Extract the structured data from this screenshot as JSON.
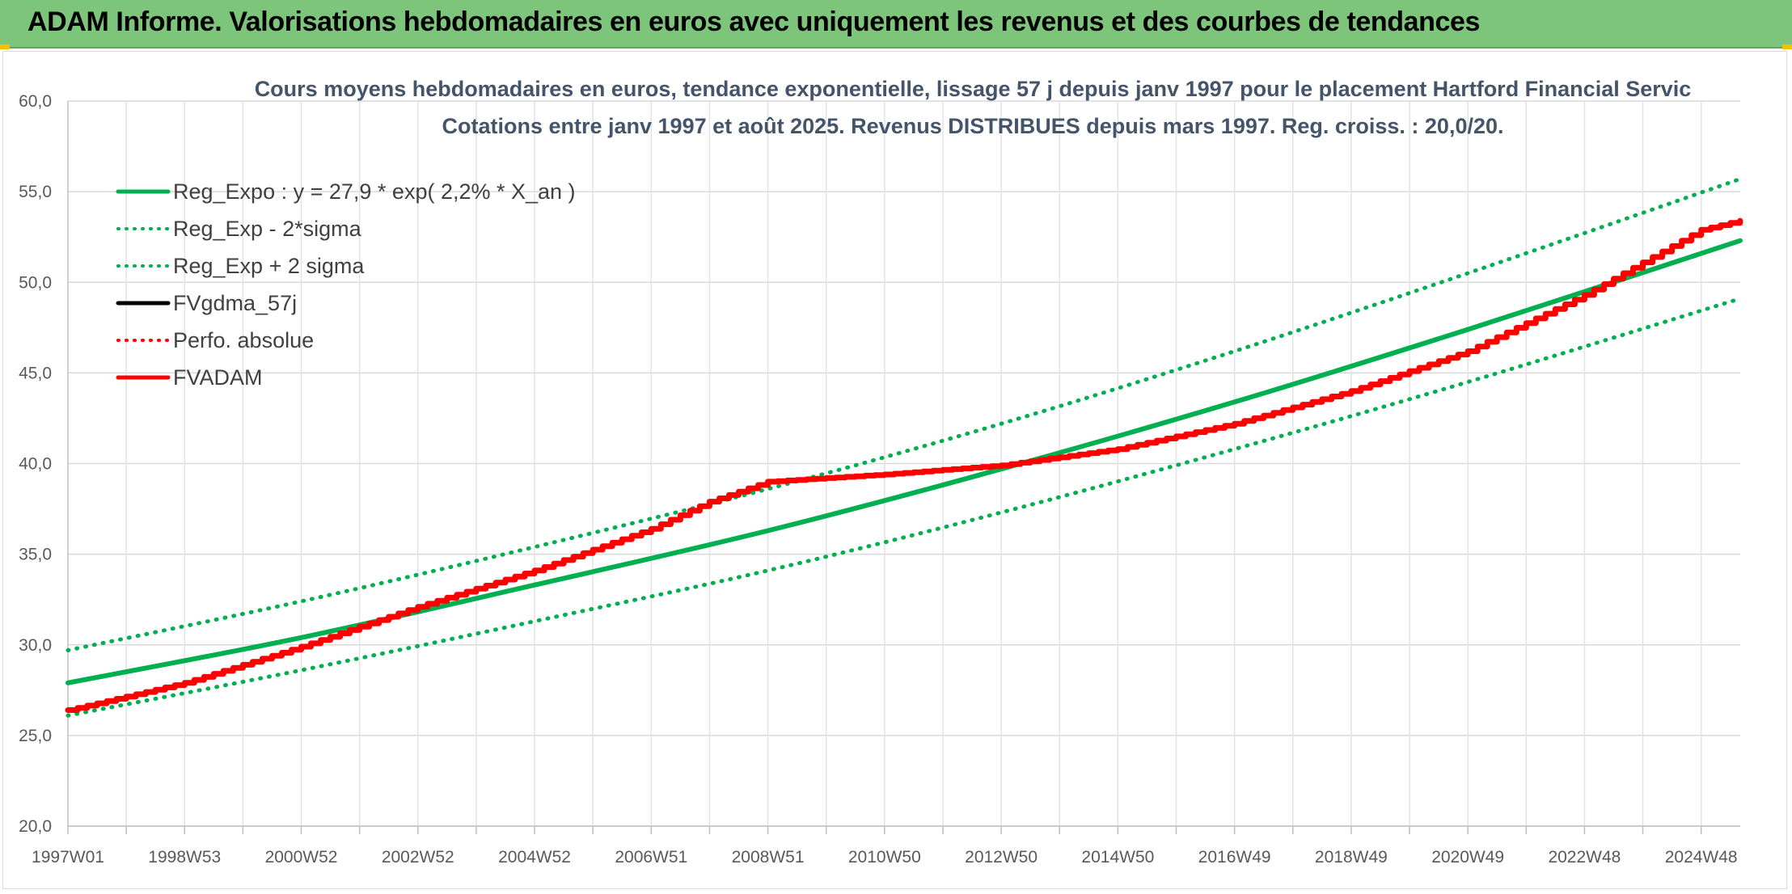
{
  "page": {
    "banner_title": "ADAM Informe. Valorisations hebdomadaires en euros avec uniquement les revenus et des courbes de tendances"
  },
  "colors": {
    "banner": "#7dc57a",
    "reg": "#00b050",
    "fv": "#ff0000",
    "fvdma": "#000000"
  },
  "chart_data": {
    "type": "line",
    "title_lines": [
      "Cours moyens hebdomadaires en euros, tendance exponentielle, lissage 57 j depuis janv 1997 pour le placement Hartford Financial Servic",
      "Cotations entre janv 1997 et août 2025. Revenus DISTRIBUES depuis mars 1997. Reg. croiss. : 20,0/20."
    ],
    "x_range": [
      1997.0,
      2025.67
    ],
    "x_ticks": [
      {
        "label": "1997W01",
        "x": 1997.0
      },
      {
        "label": "1998W53",
        "x": 1999.0
      },
      {
        "label": "2000W52",
        "x": 2001.0
      },
      {
        "label": "2002W52",
        "x": 2003.0
      },
      {
        "label": "2004W52",
        "x": 2005.0
      },
      {
        "label": "2006W51",
        "x": 2007.0
      },
      {
        "label": "2008W51",
        "x": 2009.0
      },
      {
        "label": "2010W50",
        "x": 2011.0
      },
      {
        "label": "2012W50",
        "x": 2013.0
      },
      {
        "label": "2014W50",
        "x": 2015.0
      },
      {
        "label": "2016W49",
        "x": 2017.0
      },
      {
        "label": "2018W49",
        "x": 2019.0
      },
      {
        "label": "2020W49",
        "x": 2021.0
      },
      {
        "label": "2022W48",
        "x": 2023.0
      },
      {
        "label": "2024W48",
        "x": 2025.0
      }
    ],
    "ylim": [
      20,
      60
    ],
    "y_ticks": [
      "20,0",
      "25,0",
      "30,0",
      "35,0",
      "40,0",
      "45,0",
      "50,0",
      "55,0",
      "60,0"
    ],
    "y_tick_values": [
      20,
      25,
      30,
      35,
      40,
      45,
      50,
      55,
      60
    ],
    "legend_position": "top-left",
    "legend": [
      {
        "label": "Reg_Expo : y = 27,9 * exp( 2,2% *  X_an )",
        "key": "reg_expo",
        "color": "#00b050",
        "style": "solid"
      },
      {
        "label": "Reg_Exp - 2*sigma",
        "key": "reg_minus",
        "color": "#00b050",
        "style": "dotted"
      },
      {
        "label": "Reg_Exp + 2 sigma",
        "key": "reg_plus",
        "color": "#00b050",
        "style": "dotted"
      },
      {
        "label": "FVgdma_57j",
        "key": "fvgdma",
        "color": "#000000",
        "style": "solid"
      },
      {
        "label": "Perfo. absolue",
        "key": "perfo",
        "color": "#ff0000",
        "style": "dotted"
      },
      {
        "label": "FVADAM",
        "key": "fvadam",
        "color": "#ff0000",
        "style": "solid"
      }
    ],
    "series": [
      {
        "name": "Reg_Expo : y = 27,9 * exp( 2,2% *  X_an )",
        "key": "reg_expo",
        "x": [
          1997.0,
          2001.0,
          2005.0,
          2009.0,
          2013.0,
          2017.0,
          2021.0,
          2025.67
        ],
        "values": [
          27.9,
          30.4,
          33.3,
          36.3,
          39.7,
          43.4,
          47.4,
          52.3
        ]
      },
      {
        "name": "Reg_Exp - 2*sigma",
        "key": "reg_minus",
        "x": [
          1997.0,
          2001.0,
          2005.0,
          2009.0,
          2013.0,
          2017.0,
          2021.0,
          2025.67
        ],
        "values": [
          26.1,
          28.6,
          31.3,
          34.1,
          37.3,
          40.8,
          44.5,
          49.1
        ]
      },
      {
        "name": "Reg_Exp + 2 sigma",
        "key": "reg_plus",
        "x": [
          1997.0,
          2001.0,
          2005.0,
          2009.0,
          2013.0,
          2017.0,
          2021.0,
          2025.67
        ],
        "values": [
          29.7,
          32.4,
          35.4,
          38.6,
          42.2,
          46.2,
          50.5,
          55.7
        ]
      },
      {
        "name": "FVADAM",
        "key": "fvadam",
        "x": [
          1997.0,
          1999.0,
          2001.0,
          2003.0,
          2005.0,
          2007.0,
          2008.0,
          2009.0,
          2011.0,
          2013.0,
          2015.0,
          2017.0,
          2019.0,
          2021.0,
          2023.0,
          2025.0,
          2025.67
        ],
        "values": [
          26.4,
          27.9,
          29.9,
          32.1,
          34.1,
          36.4,
          37.9,
          39.0,
          39.4,
          39.9,
          40.8,
          42.2,
          44.0,
          46.2,
          49.3,
          52.9,
          53.4
        ]
      }
    ]
  }
}
